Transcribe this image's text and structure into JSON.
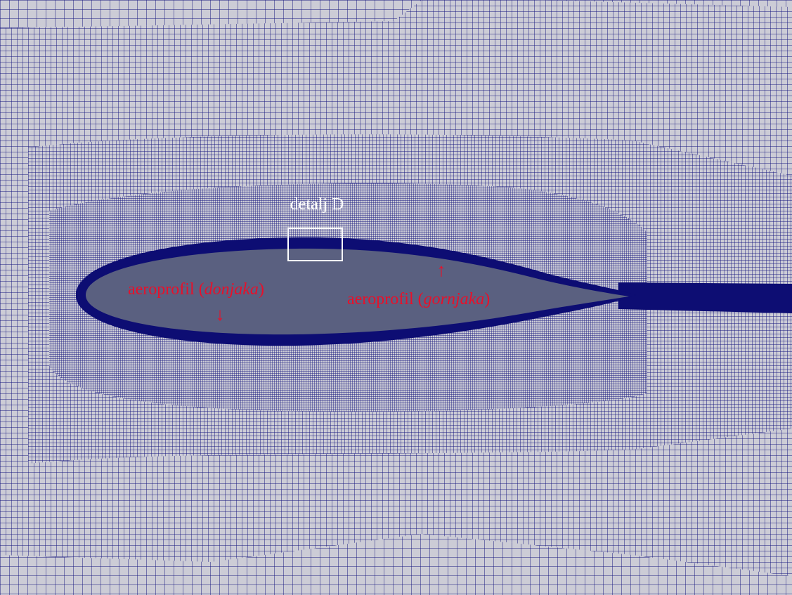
{
  "figure": {
    "detail_label": "detalj D",
    "airfoil_lower": {
      "prefix": "aeroprofil (",
      "emph": "donjaka",
      "suffix": ")",
      "arrow": "↓"
    },
    "airfoil_upper": {
      "prefix": "aeroprofil (",
      "emph": "gornjaka",
      "suffix": ")",
      "arrow": "↑"
    }
  },
  "colors": {
    "mesh_background": "#ccccd6",
    "mesh_lines": "#1a1a80",
    "boundary_layer": "#0d0d73",
    "airfoil_fill": "#5a6080",
    "label_red": "#e8102a",
    "label_white": "#ffffff"
  }
}
